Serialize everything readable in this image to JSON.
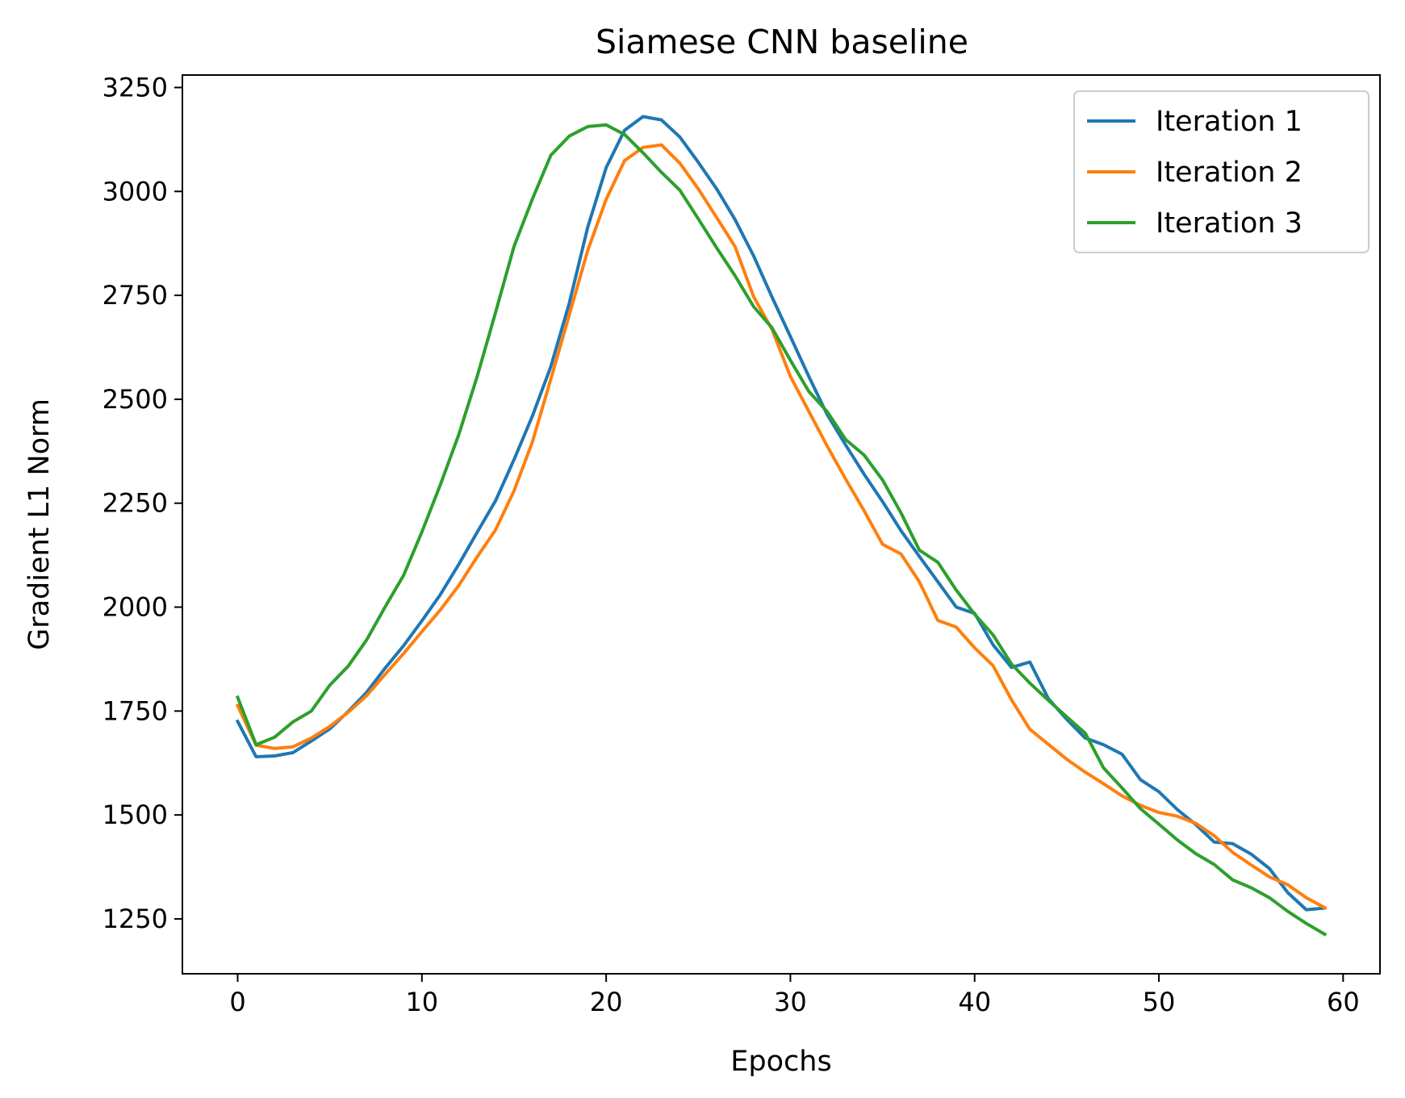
{
  "chart_data": {
    "type": "line",
    "title": "Siamese CNN baseline",
    "xlabel": "Epochs",
    "ylabel": "Gradient L1 Norm",
    "xlim": [
      -3,
      62
    ],
    "ylim": [
      1118,
      3280
    ],
    "x_ticks": [
      0,
      10,
      20,
      30,
      40,
      50,
      60
    ],
    "y_ticks": [
      1250,
      1500,
      1750,
      2000,
      2250,
      2500,
      2750,
      3000,
      3250
    ],
    "grid": false,
    "legend_position": "top-right",
    "x": [
      0,
      1,
      2,
      3,
      4,
      5,
      6,
      7,
      8,
      9,
      10,
      11,
      12,
      13,
      14,
      15,
      16,
      17,
      18,
      19,
      20,
      21,
      22,
      23,
      24,
      25,
      26,
      27,
      28,
      29,
      30,
      31,
      32,
      33,
      34,
      35,
      36,
      37,
      38,
      39,
      40,
      41,
      42,
      43,
      44,
      45,
      46,
      47,
      48,
      49,
      50,
      51,
      52,
      53,
      54,
      55,
      56,
      57,
      58,
      59
    ],
    "series": [
      {
        "name": "Iteration 1",
        "color": "#1f77b4",
        "values": [
          1725,
          1640,
          1642,
          1650,
          1678,
          1707,
          1749,
          1795,
          1853,
          1907,
          1967,
          2030,
          2103,
          2180,
          2256,
          2355,
          2460,
          2579,
          2731,
          2914,
          3057,
          3147,
          3180,
          3172,
          3131,
          3070,
          3006,
          2932,
          2845,
          2746,
          2651,
          2555,
          2463,
          2390,
          2320,
          2254,
          2184,
          2122,
          2061,
          2000,
          1985,
          1909,
          1855,
          1868,
          1780,
          1730,
          1685,
          1669,
          1646,
          1585,
          1556,
          1513,
          1477,
          1435,
          1431,
          1406,
          1371,
          1313,
          1272,
          1276
        ]
      },
      {
        "name": "Iteration 2",
        "color": "#ff7f0e",
        "values": [
          1763,
          1668,
          1660,
          1664,
          1685,
          1713,
          1747,
          1787,
          1838,
          1888,
          1941,
          1993,
          2052,
          2121,
          2186,
          2280,
          2398,
          2549,
          2703,
          2858,
          2981,
          3074,
          3106,
          3112,
          3068,
          3006,
          2937,
          2867,
          2747,
          2668,
          2555,
          2471,
          2387,
          2308,
          2232,
          2151,
          2128,
          2061,
          1968,
          1952,
          1902,
          1859,
          1777,
          1706,
          1670,
          1634,
          1603,
          1575,
          1546,
          1523,
          1506,
          1497,
          1480,
          1450,
          1410,
          1380,
          1351,
          1332,
          1301,
          1277
        ]
      },
      {
        "name": "Iteration 3",
        "color": "#2ca02c",
        "values": [
          1783,
          1669,
          1687,
          1724,
          1750,
          1812,
          1858,
          1921,
          2000,
          2076,
          2181,
          2294,
          2415,
          2555,
          2709,
          2868,
          2982,
          3087,
          3133,
          3156,
          3160,
          3137,
          3093,
          3046,
          3003,
          2934,
          2864,
          2797,
          2723,
          2672,
          2594,
          2519,
          2470,
          2403,
          2366,
          2306,
          2227,
          2137,
          2108,
          2041,
          1983,
          1933,
          1863,
          1817,
          1776,
          1736,
          1697,
          1613,
          1565,
          1515,
          1478,
          1440,
          1407,
          1381,
          1344,
          1325,
          1301,
          1268,
          1239,
          1213
        ]
      }
    ]
  }
}
